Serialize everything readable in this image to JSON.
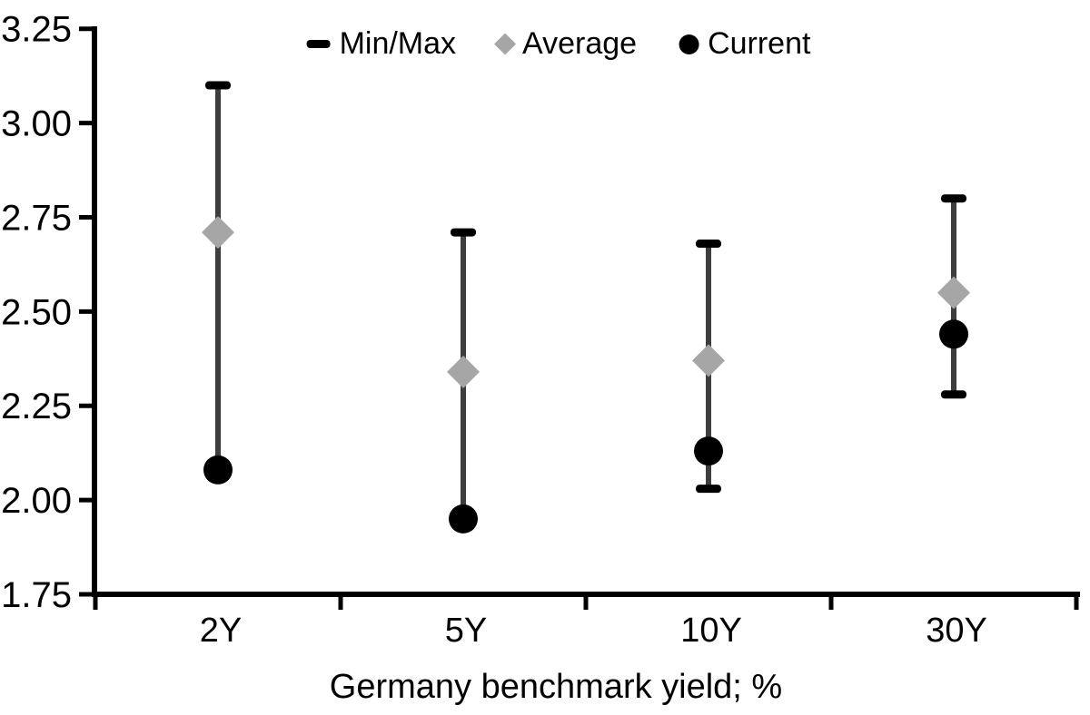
{
  "chart_data": {
    "type": "scatter",
    "subtype": "min-max-range-with-markers",
    "title": "",
    "xlabel": "Germany benchmark yield; %",
    "ylabel": "",
    "categories": [
      "2Y",
      "5Y",
      "10Y",
      "30Y"
    ],
    "ylim": [
      1.75,
      3.25
    ],
    "ytick_values": [
      3.25,
      3.0,
      2.75,
      2.5,
      2.25,
      2.0,
      1.75
    ],
    "ytick_labels": [
      "3.25",
      "3.00",
      "2.75",
      "2.50",
      "2.25",
      "2.00",
      "1.75"
    ],
    "grid": false,
    "legend_position": "top-center",
    "colors": {
      "axis": "#000000",
      "whisker_line": "#3d3d3d",
      "minmax_cap": "#000000",
      "average_marker": "#a6a6a6",
      "current_marker": "#000000",
      "text": "#000000",
      "background": "#ffffff"
    },
    "series": [
      {
        "name": "Min/Max",
        "marker": "dash",
        "color": "#000000",
        "role": "range",
        "max": [
          3.1,
          2.71,
          2.68,
          2.8
        ],
        "min": [
          2.08,
          1.95,
          2.03,
          2.28
        ]
      },
      {
        "name": "Average",
        "marker": "diamond",
        "color": "#a6a6a6",
        "role": "point",
        "values": [
          2.71,
          2.34,
          2.37,
          2.55
        ]
      },
      {
        "name": "Current",
        "marker": "circle",
        "color": "#000000",
        "role": "point",
        "values": [
          2.08,
          1.95,
          2.13,
          2.44
        ]
      }
    ]
  }
}
